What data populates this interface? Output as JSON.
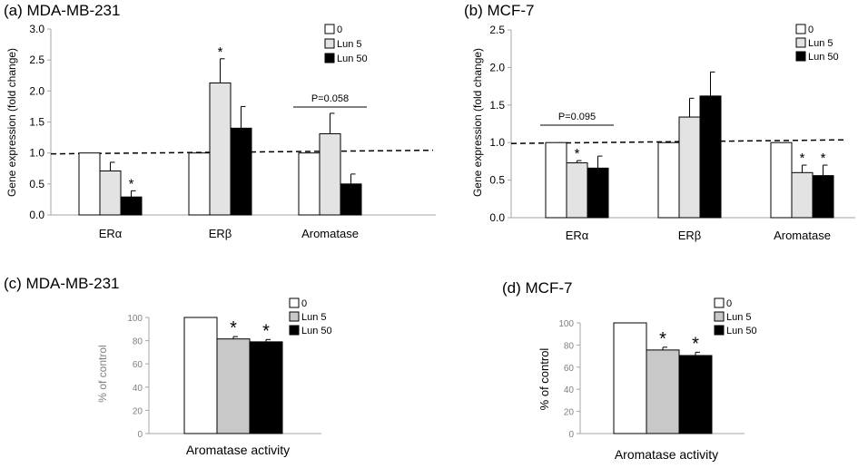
{
  "chart_data": [
    {
      "type": "bar",
      "title": "(a) MDA-MB-231",
      "ylabel": "Gene expression (fold change)",
      "xlabel": "",
      "categories": [
        "ERα",
        "ERβ",
        "Aromatase"
      ],
      "series": [
        {
          "name": "0",
          "values": [
            1.0,
            1.0,
            1.0
          ],
          "errors": [
            0,
            0,
            0
          ]
        },
        {
          "name": "Lun 5",
          "values": [
            0.71,
            2.13,
            1.31
          ],
          "errors": [
            0.14,
            0.39,
            0.33
          ]
        },
        {
          "name": "Lun 50",
          "values": [
            0.29,
            1.4,
            0.5
          ],
          "errors": [
            0.1,
            0.35,
            0.16
          ]
        }
      ],
      "ylim": [
        0,
        3.0
      ],
      "yticks": [
        "0.0",
        "0.5",
        "1.0",
        "1.5",
        "2.0",
        "2.5",
        "3.0"
      ],
      "reference_line": 1.0,
      "significance": [
        {
          "category": 0,
          "series": 2,
          "label": "*"
        },
        {
          "category": 1,
          "series": 1,
          "label": "*"
        }
      ],
      "brackets": [
        {
          "category": 2,
          "label": "P=0.058"
        }
      ],
      "grid": false,
      "legend_position": "top-right"
    },
    {
      "type": "bar",
      "title": "(b) MCF-7",
      "ylabel": "Gene expression (fold change)",
      "xlabel": "",
      "categories": [
        "ERα",
        "ERβ",
        "Aromatase"
      ],
      "series": [
        {
          "name": "0",
          "values": [
            1.0,
            1.0,
            1.0
          ],
          "errors": [
            0,
            0,
            0
          ]
        },
        {
          "name": "Lun 5",
          "values": [
            0.73,
            1.34,
            0.6
          ],
          "errors": [
            0.03,
            0.25,
            0.1
          ]
        },
        {
          "name": "Lun 50",
          "values": [
            0.66,
            1.62,
            0.56
          ],
          "errors": [
            0.16,
            0.32,
            0.14
          ]
        }
      ],
      "ylim": [
        0,
        2.5
      ],
      "yticks": [
        "0.0",
        "0.5",
        "1.0",
        "1.5",
        "2.0",
        "2.5"
      ],
      "reference_line": 1.0,
      "significance": [
        {
          "category": 0,
          "series": 1,
          "label": "*"
        },
        {
          "category": 2,
          "series": 1,
          "label": "*"
        },
        {
          "category": 2,
          "series": 2,
          "label": "*"
        }
      ],
      "brackets": [
        {
          "category": 0,
          "label": "P=0.095"
        }
      ],
      "grid": false,
      "legend_position": "top-right"
    },
    {
      "type": "bar",
      "title": "(c) MDA-MB-231",
      "ylabel": "% of control",
      "xlabel": "Aromatase activity",
      "categories": [
        ""
      ],
      "series": [
        {
          "name": "0",
          "values": [
            100
          ],
          "errors": [
            0
          ]
        },
        {
          "name": "Lun 5",
          "values": [
            81.5
          ],
          "errors": [
            2
          ]
        },
        {
          "name": "Lun 50",
          "values": [
            79
          ],
          "errors": [
            2
          ]
        }
      ],
      "ylim": [
        0,
        100
      ],
      "yticks": [
        "0",
        "20",
        "40",
        "60",
        "80",
        "100"
      ],
      "significance": [
        {
          "category": 0,
          "series": 1,
          "label": "*"
        },
        {
          "category": 0,
          "series": 2,
          "label": "*"
        }
      ],
      "grid": false,
      "legend_position": "top-right"
    },
    {
      "type": "bar",
      "title": "(d) MCF-7",
      "ylabel": "% of control",
      "xlabel": "Aromatase activity",
      "categories": [
        ""
      ],
      "series": [
        {
          "name": "0",
          "values": [
            100
          ],
          "errors": [
            0
          ]
        },
        {
          "name": "Lun 5",
          "values": [
            75.5
          ],
          "errors": [
            2.5
          ]
        },
        {
          "name": "Lun 50",
          "values": [
            70.5
          ],
          "errors": [
            3
          ]
        }
      ],
      "ylim": [
        0,
        100
      ],
      "yticks": [
        "0",
        "20",
        "40",
        "60",
        "80",
        "100"
      ],
      "significance": [
        {
          "category": 0,
          "series": 1,
          "label": "*"
        },
        {
          "category": 0,
          "series": 2,
          "label": "*"
        }
      ],
      "grid": false,
      "legend_position": "top-right"
    }
  ],
  "colors": {
    "series": [
      "#ffffff",
      "#e3e3e3",
      "#000000"
    ],
    "series_lower": [
      "#ffffff",
      "#c8c8c8",
      "#000000"
    ],
    "axis": "#a6a6a6",
    "text": "#000000",
    "tick_text": "#404040"
  }
}
